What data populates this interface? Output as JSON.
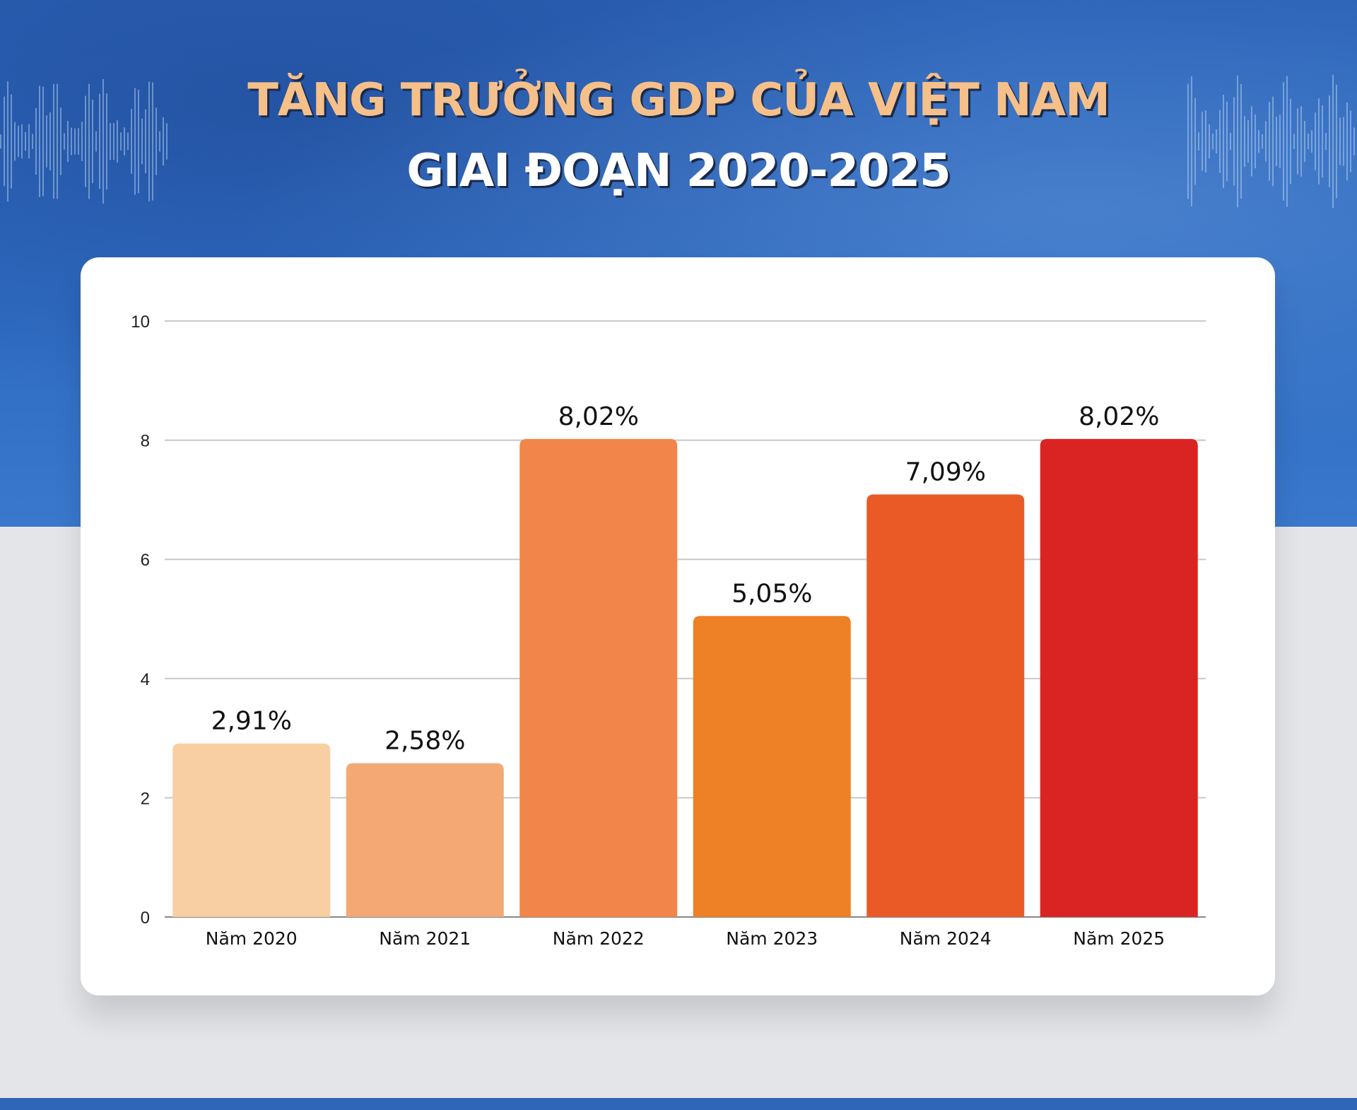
{
  "title": {
    "line1": "TĂNG TRƯỞNG GDP CỦA VIỆT NAM",
    "line2": "GIAI ĐOẠN 2020-2025"
  },
  "chart_data": {
    "type": "bar",
    "categories": [
      "Năm 2020",
      "Năm 2021",
      "Năm 2022",
      "Năm 2023",
      "Năm 2024",
      "Năm 2025"
    ],
    "values": [
      2.91,
      2.58,
      8.02,
      5.05,
      7.09,
      8.02
    ],
    "data_labels": [
      "2,91%",
      "2,58%",
      "8,02%",
      "5,05%",
      "7,09%",
      "8,02%"
    ],
    "colors": [
      "#f8cfa2",
      "#f4a874",
      "#f2854a",
      "#ee8026",
      "#ea5a27",
      "#da2424"
    ],
    "ylim": [
      0,
      10
    ],
    "yticks": [
      "0",
      "2",
      "4",
      "6",
      "8",
      "10"
    ],
    "grid": true,
    "title": "",
    "xlabel": "",
    "ylabel": ""
  }
}
